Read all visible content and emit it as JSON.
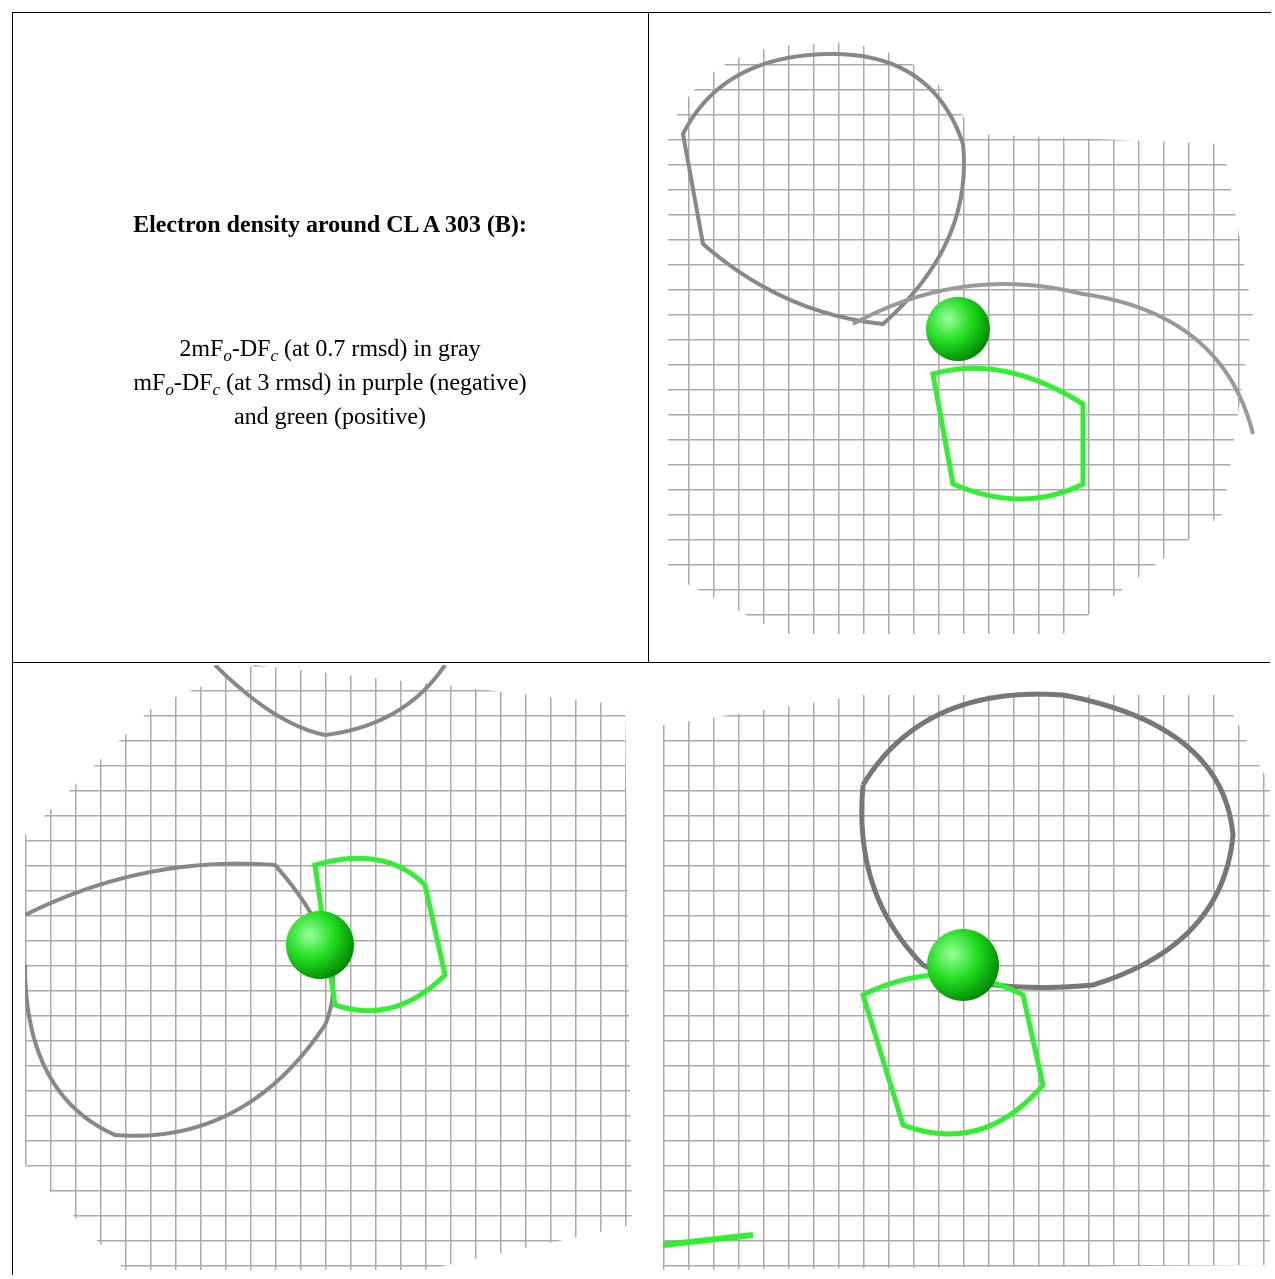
{
  "caption": {
    "title": "Electron density around CL A 303 (B):",
    "lines": [
      [
        "2mF",
        {
          "sub": "o"
        },
        "-DF",
        {
          "sub": "c"
        },
        " (at 0.7 rmsd) in gray"
      ],
      [
        "mF",
        {
          "sub": "o"
        },
        "-DF",
        {
          "sub": "c"
        },
        " (at 3 rmsd) in purple (negative)"
      ],
      [
        "and green (positive)"
      ]
    ]
  }
}
